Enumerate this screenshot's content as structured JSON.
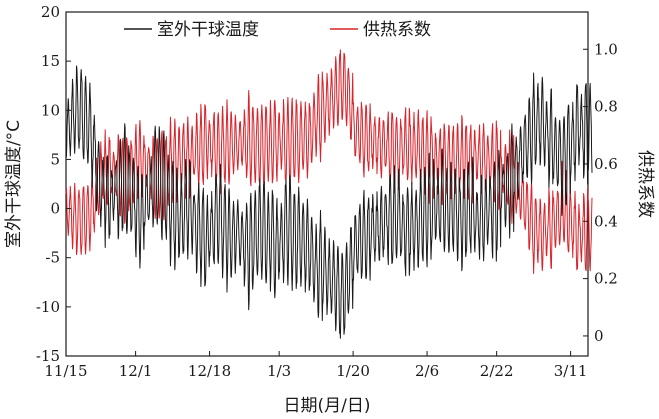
{
  "chart_data": {
    "type": "line",
    "xlabel": "日期(月/日)",
    "ylabel_left": "室外干球温度/°C",
    "ylabel_right": "供热系数",
    "x_tick_labels": [
      "11/15",
      "12/1",
      "12/18",
      "1/3",
      "1/20",
      "2/6",
      "2/22",
      "3/11"
    ],
    "x_range_days": [
      0,
      120
    ],
    "x_tick_days": [
      0,
      16,
      33,
      49,
      66,
      83,
      99,
      116
    ],
    "y_left_range": [
      -15,
      20
    ],
    "y_left_ticks": [
      -15,
      -10,
      -5,
      0,
      5,
      10,
      15,
      20
    ],
    "y_right_range": [
      -0.07,
      1.13
    ],
    "y_right_ticks": [
      0,
      0.2,
      0.4,
      0.6,
      0.8,
      1.0
    ],
    "y_right_tick_labels": [
      "0",
      "0.2",
      "0.4",
      "0.6",
      "0.8",
      "1.0"
    ],
    "grid": false,
    "legend_position": "top",
    "series": [
      {
        "name": "室外干球温度",
        "axis": "left",
        "color": "#1a1a1a",
        "samples_per_day": 1,
        "values_daily_mean": [
          8,
          9,
          10,
          10,
          9,
          8,
          6,
          3,
          2,
          1,
          1,
          2,
          2,
          3,
          2,
          1,
          0,
          -1,
          1,
          2,
          3,
          3,
          2,
          1,
          0,
          -1,
          -1,
          0,
          0,
          -1,
          -2,
          -3,
          -3,
          -2,
          -1,
          -1,
          -2,
          -3,
          -3,
          -2,
          -3,
          -4,
          -4,
          -3,
          -2,
          -2,
          -3,
          -3,
          -4,
          -3,
          -2,
          -2,
          -3,
          -3,
          -3,
          -4,
          -5,
          -6,
          -6,
          -6,
          -7,
          -7,
          -8,
          -9,
          -8,
          -6,
          -4,
          -3,
          -3,
          -3,
          -2,
          -2,
          -2,
          -1,
          -1,
          -1,
          -1,
          -2,
          -2,
          -2,
          -2,
          -1,
          -1,
          0,
          0,
          0,
          1,
          0,
          0,
          0,
          -1,
          -1,
          0,
          0,
          -1,
          -1,
          -1,
          0,
          0,
          1,
          2,
          2,
          3,
          4,
          5,
          6,
          7,
          8,
          9,
          9,
          8,
          7,
          6,
          5,
          5,
          6,
          7,
          8,
          8,
          8,
          8
        ],
        "daily_amplitude": 5
      },
      {
        "name": "供热系数",
        "axis": "right",
        "color": "#d9222a",
        "samples_per_day": 1,
        "values_daily_mean": [
          0.44,
          0.42,
          0.41,
          0.4,
          0.41,
          0.43,
          0.46,
          0.53,
          0.57,
          0.58,
          0.58,
          0.57,
          0.56,
          0.55,
          0.56,
          0.58,
          0.6,
          0.61,
          0.59,
          0.57,
          0.56,
          0.56,
          0.57,
          0.58,
          0.6,
          0.61,
          0.62,
          0.62,
          0.62,
          0.63,
          0.65,
          0.67,
          0.67,
          0.66,
          0.65,
          0.65,
          0.66,
          0.67,
          0.67,
          0.66,
          0.67,
          0.68,
          0.68,
          0.67,
          0.66,
          0.66,
          0.67,
          0.67,
          0.68,
          0.68,
          0.67,
          0.67,
          0.68,
          0.68,
          0.68,
          0.69,
          0.72,
          0.75,
          0.77,
          0.79,
          0.81,
          0.83,
          0.85,
          0.88,
          0.86,
          0.8,
          0.72,
          0.7,
          0.69,
          0.69,
          0.68,
          0.67,
          0.67,
          0.66,
          0.65,
          0.65,
          0.65,
          0.66,
          0.66,
          0.66,
          0.66,
          0.65,
          0.64,
          0.62,
          0.62,
          0.61,
          0.6,
          0.61,
          0.61,
          0.61,
          0.62,
          0.62,
          0.61,
          0.61,
          0.62,
          0.62,
          0.62,
          0.61,
          0.6,
          0.58,
          0.57,
          0.56,
          0.55,
          0.52,
          0.5,
          0.47,
          0.42,
          0.38,
          0.36,
          0.35,
          0.36,
          0.38,
          0.4,
          0.43,
          0.45,
          0.42,
          0.38,
          0.36,
          0.36,
          0.36,
          0.36
        ],
        "daily_amplitude": 0.14
      }
    ]
  }
}
